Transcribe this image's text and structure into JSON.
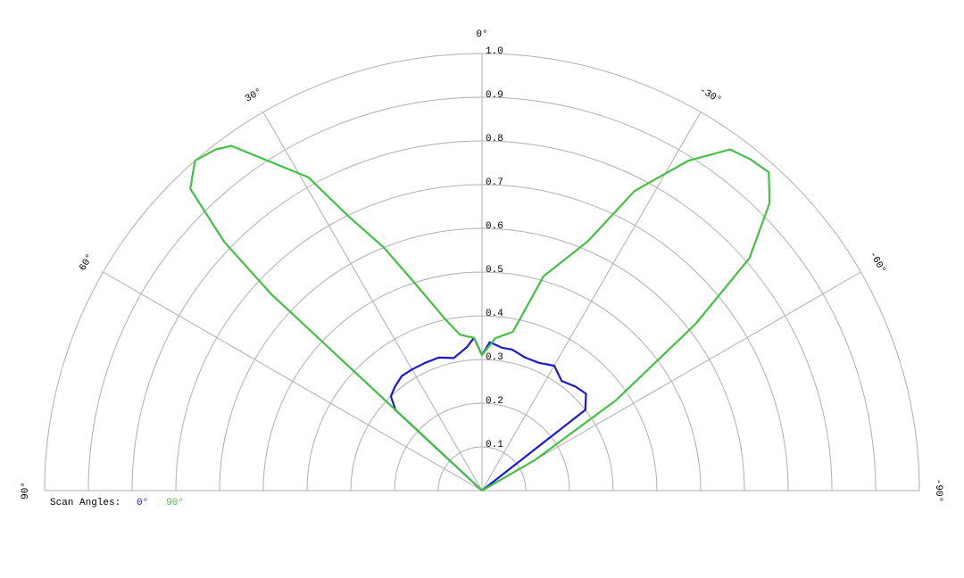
{
  "chart_data": {
    "type": "polar",
    "legend_title": "Scan Angles:",
    "rlim": [
      0,
      1
    ],
    "rticks": [
      0.1,
      0.2,
      0.3,
      0.4,
      0.5,
      0.6,
      0.7,
      0.8,
      0.9,
      {
        "value": 1,
        "label": "1.0"
      }
    ],
    "thetalim": [
      90,
      -90
    ],
    "thetaticks": [
      {
        "value": 90,
        "label": "90°"
      },
      {
        "value": 60,
        "label": "60°"
      },
      {
        "value": 30,
        "label": "30°"
      },
      {
        "value": 0,
        "label": "0°"
      },
      {
        "value": -30,
        "label": "-30°"
      },
      {
        "value": -60,
        "label": "-60°"
      },
      {
        "value": -90,
        "label": "-90°"
      }
    ],
    "grid": true,
    "series": [
      {
        "name": "0°",
        "color": "#1a1acc",
        "x": [
          48,
          47,
          44,
          40,
          35,
          30,
          24,
          18,
          12,
          6,
          3,
          0,
          -3,
          -8,
          -12,
          -18,
          -24,
          -30,
          -36,
          -42,
          -47,
          -52,
          -52
        ],
        "values": [
          0,
          0.27,
          0.3,
          0.31,
          0.32,
          0.32,
          0.32,
          0.32,
          0.31,
          0.33,
          0.35,
          0.31,
          0.34,
          0.33,
          0.33,
          0.32,
          0.32,
          0.33,
          0.31,
          0.32,
          0.325,
          0.3,
          0
        ]
      },
      {
        "name": "90°",
        "color": "#44c044",
        "x": [
          48,
          47,
          46,
          44,
          41,
          38,
          36,
          33,
          29,
          26,
          22,
          18,
          12,
          8,
          3,
          0,
          -5,
          -11,
          -16,
          -23,
          -27,
          -32,
          -36,
          -39,
          -42,
          -45,
          -49,
          -52,
          -56,
          -60,
          -63
        ],
        "values": [
          0,
          0.66,
          0.82,
          0.96,
          1.0,
          0.99,
          0.975,
          0.9,
          0.82,
          0.7,
          0.6,
          0.5,
          0.4,
          0.36,
          0.35,
          0.31,
          0.35,
          0.37,
          0.51,
          0.62,
          0.77,
          0.89,
          0.965,
          0.975,
          0.98,
          0.93,
          0.81,
          0.62,
          0.37,
          0.14,
          0
        ]
      }
    ]
  }
}
